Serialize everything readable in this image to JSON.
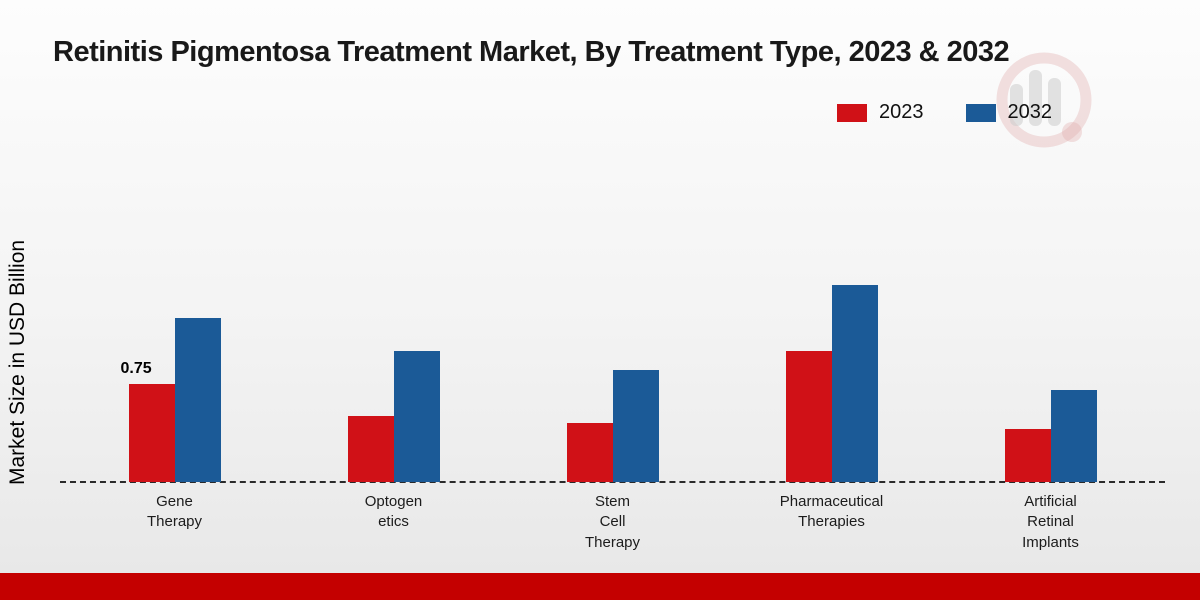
{
  "page": {
    "title": "Retinitis Pigmentosa Treatment Market, By Treatment Type, 2023 & 2032",
    "ylabel": "Market Size in USD Billion"
  },
  "legend": {
    "items": [
      {
        "label": "2023",
        "color": "#d01117"
      },
      {
        "label": "2032",
        "color": "#1b5a97"
      }
    ]
  },
  "chart_data": {
    "type": "bar",
    "title": "Retinitis Pigmentosa Treatment Market, By Treatment Type, 2023 & 2032",
    "ylabel": "Market Size in USD Billion",
    "xlabel": "",
    "categories": [
      "Gene\nTherapy",
      "Optogen\netics",
      "Stem\nCell\nTherapy",
      "Pharmaceutical\nTherapies",
      "Artificial\nRetinal\nImplants"
    ],
    "series": [
      {
        "name": "2023",
        "color": "#d01117",
        "values": [
          0.75,
          0.5,
          0.45,
          1.0,
          0.4
        ]
      },
      {
        "name": "2032",
        "color": "#1b5a97",
        "values": [
          1.25,
          1.0,
          0.85,
          1.5,
          0.7
        ]
      }
    ],
    "ylim": [
      0,
      1.6
    ],
    "bar_label": {
      "series_index": 0,
      "category_index": 0,
      "text": "0.75"
    },
    "legend_position": "top-right",
    "grid": false,
    "baseline_style": "dashed"
  },
  "footer": {
    "color": "#c40000"
  }
}
